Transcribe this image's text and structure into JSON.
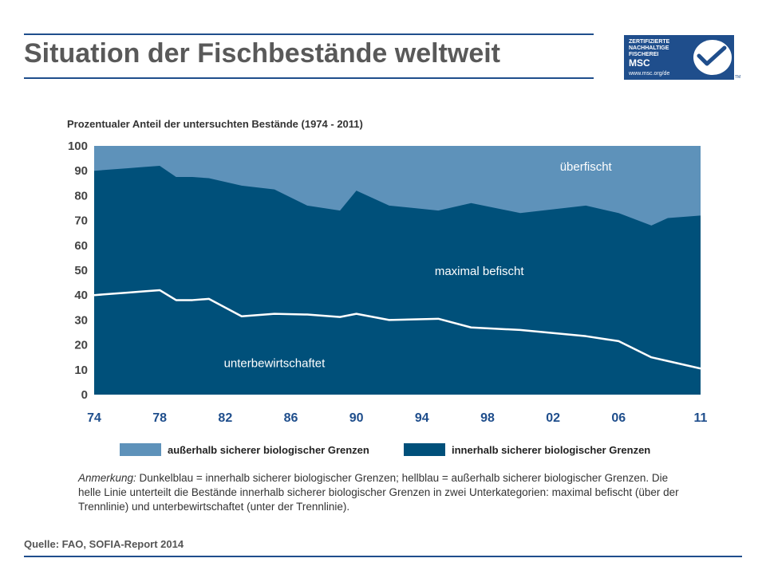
{
  "slide": {
    "title": "Situation der Fischbestände weltweit",
    "source": "Quelle: FAO, SOFIA-Report 2014",
    "note_label": "Anmerkung:",
    "note_text": " Dunkelblau = innerhalb sicherer biologischer Grenzen; hellblau = außerhalb sicherer biologischer Grenzen. Die helle Linie unterteilt die Bestände innerhalb sicherer biologischer Grenzen in zwei Unterkategorien: maximal befischt (über der Trennlinie) und unterbewirtschaftet (unter der Trennlinie)."
  },
  "logo": {
    "lines": [
      "ZERTIFIZIERTE",
      "NACHHALTIGE",
      "FISCHEREI"
    ],
    "brand": "MSC",
    "url": "www.msc.org/de",
    "tm": "TM",
    "color": "#1f4e8c"
  },
  "colors": {
    "rule": "#1f4e8c",
    "light_blue": "#5e92ba",
    "dark_blue": "#00507a",
    "divider_line": "#ffffff"
  },
  "chart_data": {
    "type": "area",
    "title": "Prozentualer Anteil der untersuchten Bestände (1974 - 2011)",
    "xlabel": "",
    "ylabel": "",
    "xlim": [
      1974,
      2011
    ],
    "ylim": [
      0,
      100
    ],
    "grid": false,
    "x_ticks": [
      1974,
      1978,
      1982,
      1986,
      1990,
      1994,
      1998,
      2002,
      2006,
      2011
    ],
    "x_tick_labels": [
      "74",
      "78",
      "82",
      "86",
      "90",
      "94",
      "98",
      "02",
      "06",
      "11"
    ],
    "y_ticks": [
      0,
      10,
      20,
      30,
      40,
      50,
      60,
      70,
      80,
      90,
      100
    ],
    "y_tick_labels": [
      "0",
      "10",
      "20",
      "30",
      "40",
      "50",
      "60",
      "70",
      "80",
      "90",
      "100"
    ],
    "x": [
      1974,
      1975,
      1976,
      1977,
      1978,
      1979,
      1980,
      1981,
      1983,
      1985,
      1987,
      1989,
      1990,
      1992,
      1995,
      1997,
      2000,
      2004,
      2006,
      2008,
      2009,
      2011
    ],
    "series": [
      {
        "name": "innerhalb sicherer biologischer Grenzen",
        "values": [
          90,
          90.5,
          91,
          91.5,
          92,
          87.5,
          87.5,
          87,
          84,
          82.5,
          76,
          74,
          82,
          76,
          74,
          77,
          73,
          76,
          73,
          68,
          71,
          72
        ]
      },
      {
        "name": "unterbewirtschaftet (unter der Trennlinie)",
        "values": [
          40,
          40.5,
          41,
          41.5,
          42,
          38,
          38,
          38.5,
          31.5,
          32.5,
          32.2,
          31.2,
          32.5,
          30,
          30.5,
          27,
          26,
          23.5,
          21.5,
          15,
          13.5,
          10.5
        ]
      }
    ],
    "legend": {
      "placement": "bottom",
      "entries": [
        {
          "label": "außerhalb sicherer biologischer Grenzen",
          "color": "#5e92ba"
        },
        {
          "label": "innerhalb sicherer biologischer Grenzen",
          "color": "#00507a"
        }
      ]
    },
    "annotations": [
      {
        "text": "überfischt",
        "x": 2004,
        "y": 90
      },
      {
        "text": "maximal befischt",
        "x": 1997.5,
        "y": 48
      },
      {
        "text": "unterbewirtschaftet",
        "x": 1985,
        "y": 11
      }
    ]
  }
}
